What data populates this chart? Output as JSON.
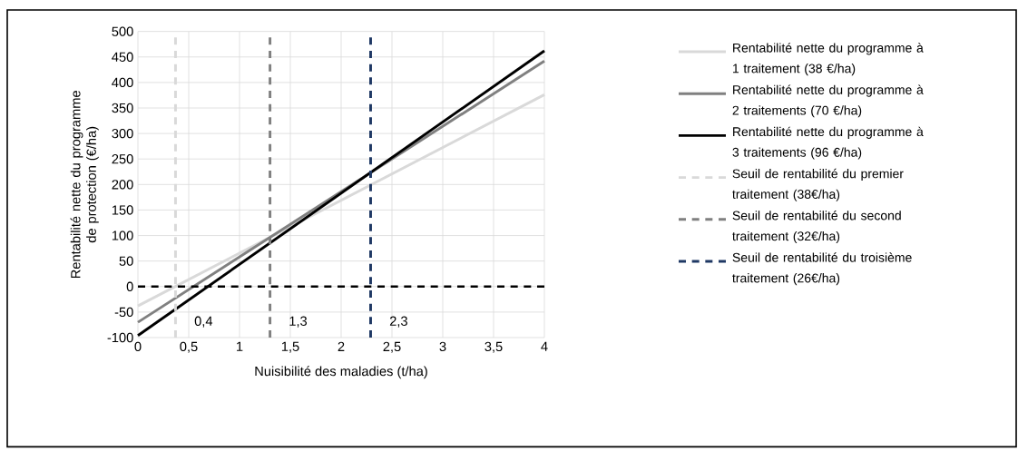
{
  "chart_data": {
    "type": "line",
    "xlabel": "Nuisibilité des maladies (t/ha)",
    "ylabel": "Rentabilité nette du programme de protection (€/ha)",
    "xlim": [
      0,
      4
    ],
    "ylim": [
      -100,
      500
    ],
    "xticks": [
      0,
      {
        "value": 0.5,
        "label": "0,5"
      },
      1,
      {
        "value": 1.5,
        "label": "1,5"
      },
      2,
      {
        "value": 2.5,
        "label": "2,5"
      },
      3,
      {
        "value": 3.5,
        "label": "3,5"
      },
      4
    ],
    "yticks": [
      -100,
      -50,
      0,
      50,
      100,
      150,
      200,
      250,
      300,
      350,
      400,
      450,
      500
    ],
    "grid": true,
    "legend": "right",
    "series": [
      {
        "name": "Rentabilité nette du programme à 1 traitement (38 €/ha)",
        "color": "#d9d9d9",
        "x": [
          0,
          4
        ],
        "values": [
          -38,
          376
        ]
      },
      {
        "name": "Rentabilité nette du programme à 2 traitements (70 €/ha)",
        "color": "#808080",
        "x": [
          0,
          4
        ],
        "values": [
          -70,
          442
        ]
      },
      {
        "name": "Rentabilité nette du programme à 3 traitements (96 €/ha)",
        "color": "#000000",
        "x": [
          0,
          4
        ],
        "values": [
          -96,
          462
        ]
      },
      {
        "name": "Seuil de rentabilité du premier traitement (38€/ha)",
        "color": "#d9d9d9",
        "line_style": "dashed",
        "x": [
          0.37,
          0.37
        ],
        "values": [
          -100,
          500
        ]
      },
      {
        "name": "Seuil de rentabilité du second traitement (32€/ha)",
        "color": "#808080",
        "line_style": "dashed",
        "x": [
          1.3,
          1.3
        ],
        "values": [
          -100,
          500
        ]
      },
      {
        "name": "Seuil de rentabilité du troisième traitement (26€/ha)",
        "color": "#1f3864",
        "line_style": "dashed",
        "x": [
          2.29,
          2.29
        ],
        "values": [
          -100,
          500
        ]
      }
    ],
    "ref_lines": [
      {
        "axis": "y",
        "value": 0,
        "color": "#000000",
        "line_style": "dashed"
      }
    ],
    "annotations": [
      "0,4",
      "1,3",
      "2,3"
    ]
  }
}
